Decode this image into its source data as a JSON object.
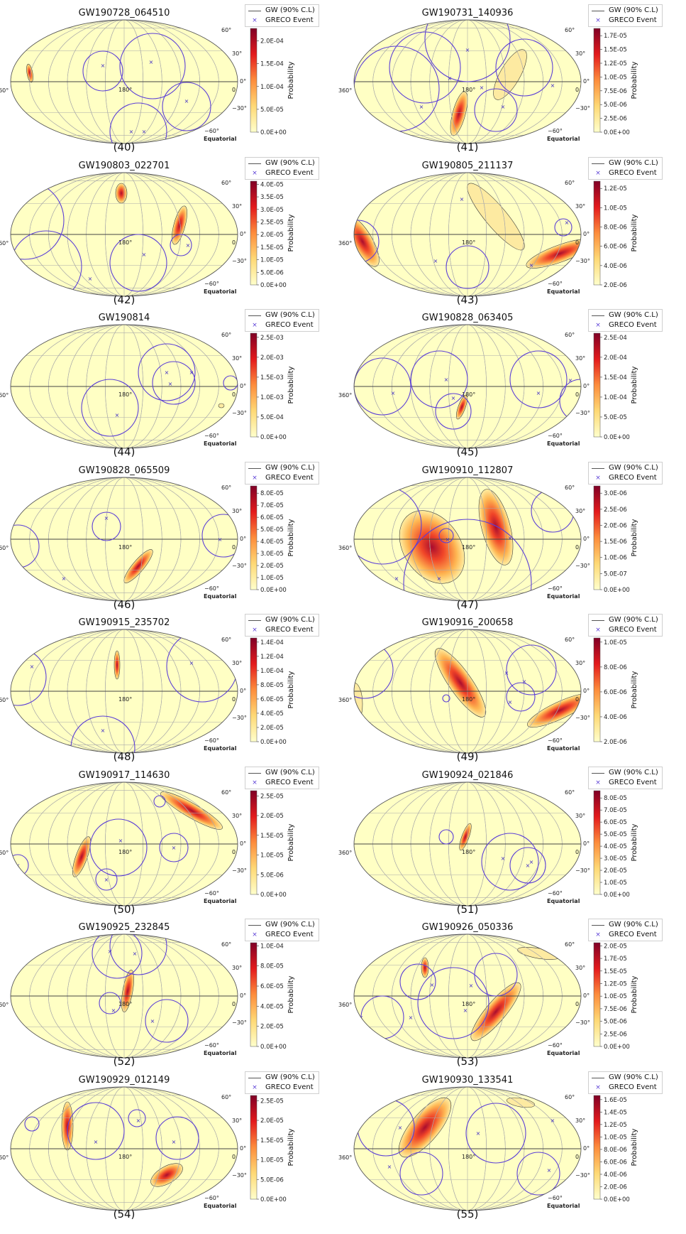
{
  "legend": {
    "gw_label": "GW (90% C.L)",
    "greco_label": "GRECO Event"
  },
  "axis": {
    "lon_left": "360°",
    "lon_mid": "180°",
    "lon_right": "0",
    "lat_60": "60°",
    "lat_30": "30°",
    "lat_0": "0°",
    "lat_m30": "−30°",
    "lat_m60": "−60°",
    "frame": "Equatorial"
  },
  "colorbar_label": "Probability",
  "panels": [
    {
      "title": "GW190728_064510",
      "label": "(40)",
      "ticks": [
        "0.0E+00",
        "5.0E-05",
        "1.0E-04",
        "1.5E-04",
        "2.0E-04"
      ],
      "cbmax_frac": 0.88
    },
    {
      "title": "GW190731_140936",
      "label": "(41)",
      "ticks": [
        "0.0E+00",
        "2.5E-06",
        "5.0E-06",
        "7.5E-06",
        "1.0E-05",
        "1.2E-05",
        "1.5E-05",
        "1.7E-05"
      ],
      "cbmax_frac": 0.93
    },
    {
      "title": "GW190803_022701",
      "label": "(42)",
      "ticks": [
        "0.0E+00",
        "5.0E-06",
        "1.0E-05",
        "1.5E-05",
        "2.0E-05",
        "2.5E-05",
        "3.0E-05",
        "3.5E-05",
        "4.0E-05"
      ],
      "cbmax_frac": 0.97
    },
    {
      "title": "GW190805_211137",
      "label": "(43)",
      "ticks": [
        "2.0E-06",
        "4.0E-06",
        "6.0E-06",
        "8.0E-06",
        "1.0E-05",
        "1.2E-05"
      ],
      "cbmax_frac": 0.93
    },
    {
      "title": "GW190814",
      "label": "(44)",
      "ticks": [
        "0.0E+00",
        "5.0E-04",
        "1.0E-03",
        "1.5E-03",
        "2.0E-03",
        "2.5E-03"
      ],
      "cbmax_frac": 0.96
    },
    {
      "title": "GW190828_063405",
      "label": "(45)",
      "ticks": [
        "0.0E+00",
        "5.0E-05",
        "1.0E-04",
        "1.5E-04",
        "2.0E-04",
        "2.5E-04"
      ],
      "cbmax_frac": 0.96
    },
    {
      "title": "GW190828_065509",
      "label": "(46)",
      "ticks": [
        "0.0E+00",
        "1.0E-05",
        "2.0E-05",
        "3.0E-05",
        "4.0E-05",
        "5.0E-05",
        "6.0E-05",
        "7.0E-05",
        "8.0E-05"
      ],
      "cbmax_frac": 0.93
    },
    {
      "title": "GW190910_112807",
      "label": "(47)",
      "ticks": [
        "0.0E+00",
        "5.0E-07",
        "1.0E-06",
        "1.5E-06",
        "2.0E-06",
        "2.5E-06",
        "3.0E-06"
      ],
      "cbmax_frac": 0.93
    },
    {
      "title": "GW190915_235702",
      "label": "(48)",
      "ticks": [
        "0.0E+00",
        "2.0E-05",
        "4.0E-05",
        "6.0E-05",
        "8.0E-05",
        "1.0E-04",
        "1.2E-04",
        "1.4E-04"
      ],
      "cbmax_frac": 0.96
    },
    {
      "title": "GW190916_200658",
      "label": "(49)",
      "ticks": [
        "2.0E-06",
        "4.0E-06",
        "6.0E-06",
        "8.0E-06",
        "1.0E-05"
      ],
      "cbmax_frac": 0.96
    },
    {
      "title": "GW190917_114630",
      "label": "(50)",
      "ticks": [
        "0.0E+00",
        "5.0E-06",
        "1.0E-05",
        "1.5E-05",
        "2.0E-05",
        "2.5E-05"
      ],
      "cbmax_frac": 0.95
    },
    {
      "title": "GW190924_021846",
      "label": "(51)",
      "ticks": [
        "0.0E+00",
        "1.0E-05",
        "2.0E-05",
        "3.0E-05",
        "4.0E-05",
        "5.0E-05",
        "6.0E-05",
        "7.0E-05",
        "8.0E-05"
      ],
      "cbmax_frac": 0.93
    },
    {
      "title": "GW190925_232845",
      "label": "(52)",
      "ticks": [
        "0.0E+00",
        "2.0E-05",
        "4.0E-05",
        "6.0E-05",
        "8.0E-05",
        "1.0E-04"
      ],
      "cbmax_frac": 0.97
    },
    {
      "title": "GW190926_050336",
      "label": "(53)",
      "ticks": [
        "0.0E+00",
        "2.5E-06",
        "5.0E-06",
        "7.5E-06",
        "1.0E-05",
        "1.2E-05",
        "1.5E-05",
        "1.7E-05",
        "2.0E-05"
      ],
      "cbmax_frac": 0.97
    },
    {
      "title": "GW190929_012149",
      "label": "(54)",
      "ticks": [
        "0.0E+00",
        "5.0E-06",
        "1.0E-05",
        "1.5E-05",
        "2.0E-05",
        "2.5E-05"
      ],
      "cbmax_frac": 0.95
    },
    {
      "title": "GW190930_133541",
      "label": "(55)",
      "ticks": [
        "0.0E+00",
        "2.0E-06",
        "4.0E-06",
        "6.0E-06",
        "8.0E-06",
        "1.0E-05",
        "1.2E-05",
        "1.4E-05",
        "1.6E-05"
      ],
      "cbmax_frac": 0.96
    }
  ]
}
